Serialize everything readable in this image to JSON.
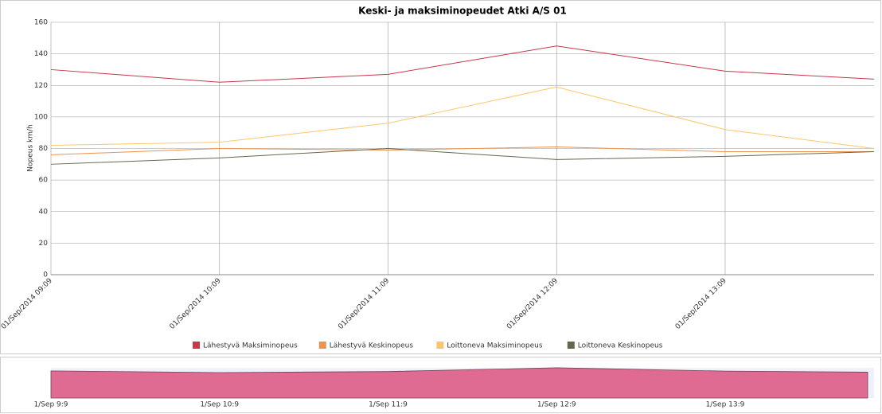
{
  "chart_data": {
    "type": "line",
    "title": "Keski- ja maksiminopeudet Atki A/S 01",
    "y_label": "Nopeus km/h",
    "x": [
      "2014-09-01 09:09",
      "2014-09-01 10:09",
      "2014-09-01 11:09",
      "2014-09-01 12:09",
      "2014-09-01 13:09",
      "2014-09-01 14:02"
    ],
    "series": [
      {
        "name": "Lähestyvä Maksiminopeus",
        "color": "#c8374a",
        "values": [
          130,
          122,
          127,
          145,
          129,
          124
        ]
      },
      {
        "name": "Lähestyvä Keskinopeus",
        "color": "#f0924a",
        "values": [
          76,
          80,
          79,
          81,
          78,
          78
        ]
      },
      {
        "name": "Loittoneva Maksiminopeus",
        "color": "#f9c76a",
        "values": [
          82,
          84,
          96,
          119,
          92,
          80
        ]
      },
      {
        "name": "Loittoneva Keskinopeus",
        "color": "#666650",
        "values": [
          70,
          74,
          80,
          73,
          75,
          78
        ]
      }
    ],
    "xlim": [
      "2014-09-01 09:09",
      "2014-09-01 14:02"
    ],
    "xticks": [
      {
        "value": "2014-09-01 09:09",
        "label": "01/Sep/2014 09:09"
      },
      {
        "value": "2014-09-01 10:09",
        "label": "01/Sep/2014 10:09"
      },
      {
        "value": "2014-09-01 11:09",
        "label": "01/Sep/2014 11:09"
      },
      {
        "value": "2014-09-01 12:09",
        "label": "01/Sep/2014 12:09"
      },
      {
        "value": "2014-09-01 13:09",
        "label": "01/Sep/2014 13:09"
      }
    ],
    "ylim": [
      0,
      160
    ],
    "yticks": [
      0,
      20,
      40,
      60,
      80,
      100,
      120,
      140,
      160
    ],
    "grid": true,
    "legend": "bottom",
    "navigator_xticks": [
      {
        "value": "2014-09-01 09:09",
        "label": "1/Sep 9:9"
      },
      {
        "value": "2014-09-01 10:09",
        "label": "1/Sep 10:9"
      },
      {
        "value": "2014-09-01 11:09",
        "label": "1/Sep 11:9"
      },
      {
        "value": "2014-09-01 12:09",
        "label": "1/Sep 12:9"
      },
      {
        "value": "2014-09-01 13:09",
        "label": "1/Sep 13:9"
      }
    ]
  }
}
